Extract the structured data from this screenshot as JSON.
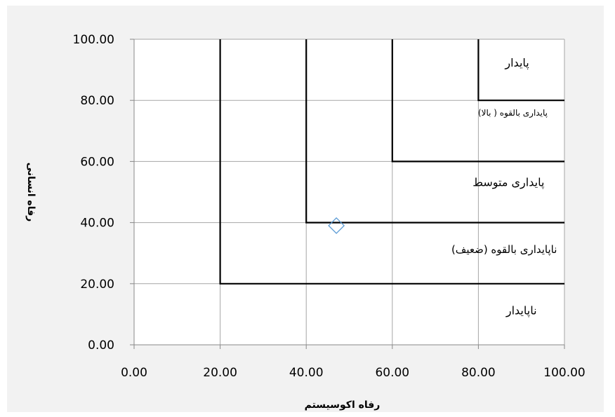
{
  "chart_data": {
    "type": "scatter",
    "title": "",
    "xlabel": "رفاه اکوسیستم",
    "ylabel": "رفاه انسانی",
    "xlim": [
      0,
      100
    ],
    "ylim": [
      0,
      100
    ],
    "x_ticks": [
      "0.00",
      "20.00",
      "40.00",
      "60.00",
      "80.00",
      "100.00"
    ],
    "y_ticks": [
      "0.00",
      "20.00",
      "40.00",
      "60.00",
      "80.00",
      "100.00"
    ],
    "grid": true,
    "points": [
      {
        "x": 47,
        "y": 39
      }
    ],
    "marker_color": "#5b9bd5",
    "boundary_color": "#000000",
    "boundaries": [
      {
        "corner_x": 20,
        "corner_y": 20
      },
      {
        "corner_x": 40,
        "corner_y": 40
      },
      {
        "corner_x": 60,
        "corner_y": 60
      },
      {
        "corner_x": 80,
        "corner_y": 80
      }
    ],
    "regions": [
      {
        "label": "پایدار",
        "x": 89,
        "y": 91
      },
      {
        "label": "پایداری بالقوه ( بالا)",
        "x": 88,
        "y": 75
      },
      {
        "label": "پایداری متوسط",
        "x": 87,
        "y": 52
      },
      {
        "label": "ناپایداری بالقوه (ضعیف)",
        "x": 86,
        "y": 30
      },
      {
        "label": "ناپایدار",
        "x": 90,
        "y": 10
      }
    ]
  }
}
